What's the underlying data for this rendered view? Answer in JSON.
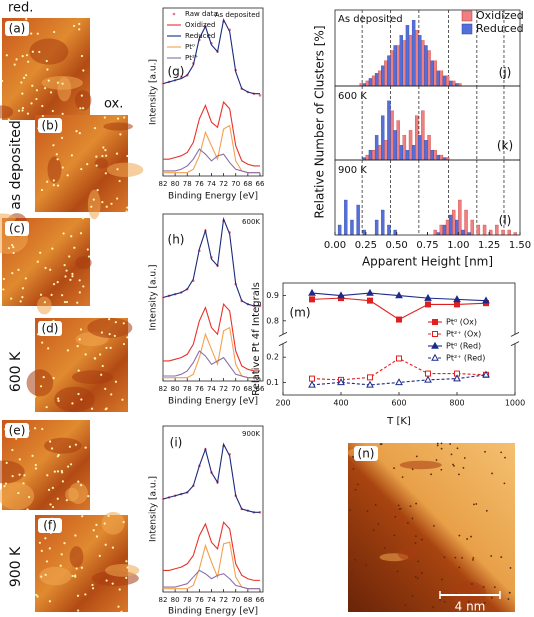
{
  "images": {
    "panels": [
      "(a)",
      "(b)",
      "(c)",
      "(d)",
      "(e)",
      "(f)",
      "(n)"
    ],
    "top_labels": [
      "red.",
      "ox."
    ],
    "row_labels": [
      "as deposited",
      "600 K",
      "900 K"
    ],
    "scale_bar": "4 nm"
  },
  "chart_data": [
    {
      "type": "line",
      "label": "(g)",
      "annotation": "As deposited",
      "xlabel": "Binding Energy [eV]",
      "ylabel": "Intensity [a.u.]",
      "x": [
        82,
        81,
        80,
        79,
        78,
        77,
        76,
        75,
        74,
        73,
        72,
        71,
        70,
        69,
        68,
        67,
        66
      ],
      "xlim": [
        82,
        65.5
      ],
      "xticks": [
        82,
        80,
        78,
        76,
        74,
        72,
        70,
        68,
        66
      ],
      "ylim": [
        0,
        10
      ],
      "series": [
        {
          "name": "Raw data",
          "color": "#e07890",
          "marker": "dot",
          "values": [
            5.5,
            5.6,
            5.7,
            5.9,
            6.0,
            6.7,
            8.1,
            8.9,
            7.9,
            7.4,
            9.2,
            8.7,
            6.3,
            5.2,
            5.0,
            4.9,
            4.8
          ]
        },
        {
          "name": "Oxidized",
          "color": "#e8322a",
          "values": [
            1.0,
            1.0,
            1.1,
            1.2,
            1.4,
            2.0,
            3.4,
            4.2,
            3.2,
            2.9,
            4.4,
            4.0,
            1.8,
            0.9,
            0.7,
            0.6,
            0.6
          ]
        },
        {
          "name": "Reduced",
          "color": "#1c2a7a",
          "values": [
            5.5,
            5.6,
            5.7,
            5.8,
            6.0,
            6.6,
            8.2,
            8.9,
            7.8,
            7.4,
            9.3,
            8.6,
            6.2,
            5.2,
            5.0,
            4.9,
            4.9
          ]
        },
        {
          "name": "Pt⁰",
          "color": "#f5a050",
          "values": [
            0.2,
            0.2,
            0.2,
            0.2,
            0.2,
            0.4,
            1.2,
            2.6,
            1.8,
            1.0,
            2.8,
            3.0,
            0.9,
            0.3,
            0.2,
            0.2,
            0.2
          ]
        },
        {
          "name": "Pt²⁺",
          "color": "#8a70a8",
          "values": [
            0.3,
            0.3,
            0.3,
            0.4,
            0.6,
            1.0,
            1.6,
            1.3,
            0.9,
            1.2,
            1.3,
            0.8,
            0.4,
            0.3,
            0.2,
            0.2,
            0.2
          ]
        }
      ]
    },
    {
      "type": "line",
      "label": "(h)",
      "annotation": "600K",
      "xlabel": "Binding Energy [eV]",
      "ylabel": "Intensity [a.u.]",
      "x": [
        82,
        81,
        80,
        79,
        78,
        77,
        76,
        75,
        74,
        73,
        72,
        71,
        70,
        69,
        68,
        67,
        66
      ],
      "xlim": [
        82,
        65.5
      ],
      "xticks": [
        82,
        80,
        78,
        76,
        74,
        72,
        70,
        68,
        66
      ],
      "ylim": [
        0,
        10
      ],
      "series": [
        {
          "color": "#e07890",
          "marker": "dot",
          "values": [
            5.0,
            5.1,
            5.2,
            5.3,
            5.5,
            6.0,
            7.8,
            9.0,
            7.4,
            6.9,
            9.6,
            8.9,
            5.8,
            4.8,
            4.6,
            4.5,
            4.5
          ]
        },
        {
          "color": "#e8322a",
          "values": [
            1.2,
            1.2,
            1.3,
            1.4,
            1.6,
            2.2,
            3.6,
            4.4,
            3.2,
            2.8,
            4.6,
            4.2,
            1.8,
            0.9,
            0.7,
            0.6,
            0.6
          ]
        },
        {
          "color": "#1c2a7a",
          "values": [
            5.0,
            5.1,
            5.2,
            5.3,
            5.5,
            6.1,
            7.9,
            9.0,
            7.3,
            6.9,
            9.7,
            8.8,
            5.8,
            4.8,
            4.6,
            4.5,
            4.5
          ]
        },
        {
          "color": "#f5a050",
          "values": [
            0.2,
            0.2,
            0.2,
            0.2,
            0.2,
            0.4,
            1.4,
            2.8,
            1.9,
            1.0,
            3.0,
            3.2,
            1.0,
            0.3,
            0.2,
            0.2,
            0.2
          ]
        },
        {
          "color": "#8a70a8",
          "values": [
            0.3,
            0.3,
            0.3,
            0.4,
            0.6,
            1.1,
            1.8,
            1.5,
            1.0,
            1.2,
            1.4,
            0.9,
            0.4,
            0.3,
            0.2,
            0.2,
            0.2
          ]
        }
      ]
    },
    {
      "type": "line",
      "label": "(i)",
      "annotation": "900K",
      "xlabel": "Binding Energy [eV]",
      "ylabel": "Intensity [a.u.]",
      "x": [
        82,
        81,
        80,
        79,
        78,
        77,
        76,
        75,
        74,
        73,
        72,
        71,
        70,
        69,
        68,
        67,
        66
      ],
      "xlim": [
        82,
        65.5
      ],
      "xticks": [
        82,
        80,
        78,
        76,
        74,
        72,
        70,
        68,
        66
      ],
      "ylim": [
        0,
        10
      ],
      "series": [
        {
          "color": "#e07890",
          "marker": "dot",
          "values": [
            5.6,
            5.7,
            5.8,
            5.9,
            6.0,
            6.4,
            7.6,
            8.6,
            7.2,
            6.6,
            8.8,
            8.3,
            5.8,
            5.0,
            4.9,
            4.8,
            4.8
          ]
        },
        {
          "color": "#e8322a",
          "values": [
            1.3,
            1.3,
            1.4,
            1.5,
            1.7,
            2.2,
            3.4,
            4.1,
            3.0,
            2.6,
            4.2,
            3.8,
            1.7,
            1.0,
            0.8,
            0.7,
            0.7
          ]
        },
        {
          "color": "#1c2a7a",
          "values": [
            5.6,
            5.7,
            5.8,
            5.9,
            6.0,
            6.4,
            7.6,
            8.6,
            7.2,
            6.6,
            8.9,
            8.2,
            5.8,
            5.0,
            4.9,
            4.8,
            4.8
          ]
        },
        {
          "color": "#f5a050",
          "values": [
            0.2,
            0.2,
            0.2,
            0.2,
            0.2,
            0.4,
            1.4,
            2.8,
            1.8,
            0.9,
            2.9,
            3.0,
            0.9,
            0.3,
            0.2,
            0.2,
            0.2
          ]
        },
        {
          "color": "#8a70a8",
          "values": [
            0.3,
            0.3,
            0.3,
            0.4,
            0.5,
            0.9,
            1.3,
            1.1,
            0.8,
            1.0,
            1.1,
            0.8,
            0.4,
            0.3,
            0.2,
            0.2,
            0.2
          ]
        }
      ]
    },
    {
      "type": "histogram",
      "label": "(j)",
      "annotation": "As deposited",
      "ylabel": "Relative Number of Clusters [%]",
      "bins": [
        0,
        0.05,
        0.1,
        0.15,
        0.2,
        0.25,
        0.3,
        0.35,
        0.4,
        0.45,
        0.5,
        0.55,
        0.6,
        0.65,
        0.7,
        0.75,
        0.8,
        0.85,
        0.9,
        0.95,
        1.0,
        1.05,
        1.1,
        1.15,
        1.2,
        1.25,
        1.3,
        1.35,
        1.4,
        1.45,
        1.5
      ],
      "xlim": [
        0,
        1.5
      ],
      "ylim": [
        0,
        15
      ],
      "vlines": [
        0.22,
        0.45,
        0.68,
        0.92,
        1.15,
        1.37
      ],
      "series": [
        {
          "name": "Oxidized",
          "color": "#f07f7f",
          "values": [
            0,
            0,
            0,
            0,
            0.5,
            1,
            2,
            3,
            5,
            7,
            8,
            9,
            10,
            11,
            9,
            7,
            5,
            3,
            2,
            1,
            0.5,
            0,
            0,
            0,
            0,
            0,
            0,
            0,
            0,
            0
          ]
        },
        {
          "name": "Reduced",
          "color": "#5470d8",
          "values": [
            0,
            0,
            0,
            0,
            0.5,
            1.5,
            2.5,
            4,
            6,
            8,
            10,
            12,
            13,
            10,
            8,
            5,
            3,
            2,
            1,
            0.5,
            0,
            0,
            0,
            0,
            0,
            0,
            0,
            0,
            0,
            0
          ]
        }
      ]
    },
    {
      "type": "histogram",
      "label": "(k)",
      "annotation": "600 K",
      "bins": [
        0,
        0.05,
        0.1,
        0.15,
        0.2,
        0.25,
        0.3,
        0.35,
        0.4,
        0.45,
        0.5,
        0.55,
        0.6,
        0.65,
        0.7,
        0.75,
        0.8,
        0.85,
        0.9,
        0.95,
        1.0,
        1.05,
        1.1,
        1.15,
        1.2,
        1.25,
        1.3,
        1.35,
        1.4,
        1.45,
        1.5
      ],
      "xlim": [
        0,
        1.5
      ],
      "ylim": [
        0,
        15
      ],
      "vlines": [
        0.22,
        0.45,
        0.68,
        0.92,
        1.15,
        1.37
      ],
      "series": [
        {
          "color": "#f07f7f",
          "values": [
            0,
            0,
            0,
            0,
            0,
            1,
            2,
            3,
            4,
            10,
            8,
            5,
            6,
            9,
            10,
            5,
            2,
            1,
            0.5,
            0,
            0,
            0,
            0,
            0,
            0,
            0,
            0,
            0,
            0,
            0
          ]
        },
        {
          "color": "#5470d8",
          "values": [
            0,
            0,
            0,
            0,
            0.5,
            2,
            5,
            9,
            12,
            6,
            3,
            2,
            3,
            5,
            4,
            2,
            1,
            0.5,
            0,
            0,
            0,
            0,
            0,
            0,
            0,
            0,
            0,
            0,
            0,
            0
          ]
        }
      ]
    },
    {
      "type": "histogram",
      "label": "(l)",
      "annotation": "900 K",
      "xlabel": "Apparent Height [nm]",
      "bins": [
        0,
        0.05,
        0.1,
        0.15,
        0.2,
        0.25,
        0.3,
        0.35,
        0.4,
        0.45,
        0.5,
        0.55,
        0.6,
        0.65,
        0.7,
        0.75,
        0.8,
        0.85,
        0.9,
        0.95,
        1.0,
        1.05,
        1.1,
        1.15,
        1.2,
        1.25,
        1.3,
        1.35,
        1.4,
        1.45,
        1.5
      ],
      "xlim": [
        0,
        1.5
      ],
      "ylim": [
        0,
        15
      ],
      "vlines": [
        0.22,
        0.45,
        0.68,
        0.92,
        1.15,
        1.37
      ],
      "xticks": [
        {
          "value": 0,
          "label": "0.00"
        },
        {
          "value": 0.25,
          "label": "0.25"
        },
        {
          "value": 0.5,
          "label": "0.50"
        },
        {
          "value": 0.75,
          "label": "0.75"
        },
        {
          "value": 1,
          "label": "1.00"
        },
        {
          "value": 1.25,
          "label": "1.25"
        },
        {
          "value": 1.5,
          "label": "1.50"
        }
      ],
      "series": [
        {
          "color": "#f07f7f",
          "values": [
            0,
            0,
            0,
            0,
            0,
            0,
            0,
            0,
            0,
            0,
            0,
            0,
            0,
            0,
            0,
            0,
            1,
            2,
            3,
            5,
            7,
            5,
            3,
            2,
            2,
            1,
            2,
            1,
            1,
            0.5
          ]
        },
        {
          "color": "#5470d8",
          "values": [
            2,
            7,
            3,
            6,
            1,
            0,
            3,
            5,
            2,
            1,
            0,
            0,
            0,
            0,
            0,
            0,
            0.5,
            2,
            4,
            3,
            1,
            0.5,
            0,
            0,
            0,
            0,
            0,
            0,
            0,
            0
          ]
        }
      ]
    },
    {
      "type": "line",
      "label": "(m)",
      "xlabel": "T [K]",
      "ylabel": "Relative Pt 4f Integrals",
      "x": [
        300,
        400,
        500,
        600,
        700,
        800,
        900
      ],
      "xlim": [
        200,
        1000
      ],
      "xticks": [
        200,
        400,
        600,
        800,
        1000
      ],
      "ylim": [
        0.05,
        0.95
      ],
      "ybreak": [
        0.25,
        0.75
      ],
      "yticks": [
        0.1,
        0.2,
        0.8,
        0.9
      ],
      "series": [
        {
          "name": "Pt⁰ (Ox)",
          "color": "#e02020",
          "marker": "square",
          "values": [
            0.885,
            0.89,
            0.88,
            0.805,
            0.865,
            0.865,
            0.87
          ]
        },
        {
          "name": "Pt²⁺ (Ox)",
          "color": "#e02020",
          "marker": "square-open",
          "dash": true,
          "values": [
            0.115,
            0.11,
            0.12,
            0.195,
            0.135,
            0.135,
            0.13
          ]
        },
        {
          "name": "Pt⁰ (Red)",
          "color": "#1c2a8a",
          "marker": "triangle",
          "values": [
            0.91,
            0.9,
            0.91,
            0.9,
            0.89,
            0.885,
            0.88
          ]
        },
        {
          "name": "Pt²⁺ (Red)",
          "color": "#1c2a8a",
          "marker": "triangle-open",
          "dash": true,
          "values": [
            0.09,
            0.1,
            0.09,
            0.1,
            0.11,
            0.115,
            0.13
          ]
        }
      ]
    }
  ]
}
